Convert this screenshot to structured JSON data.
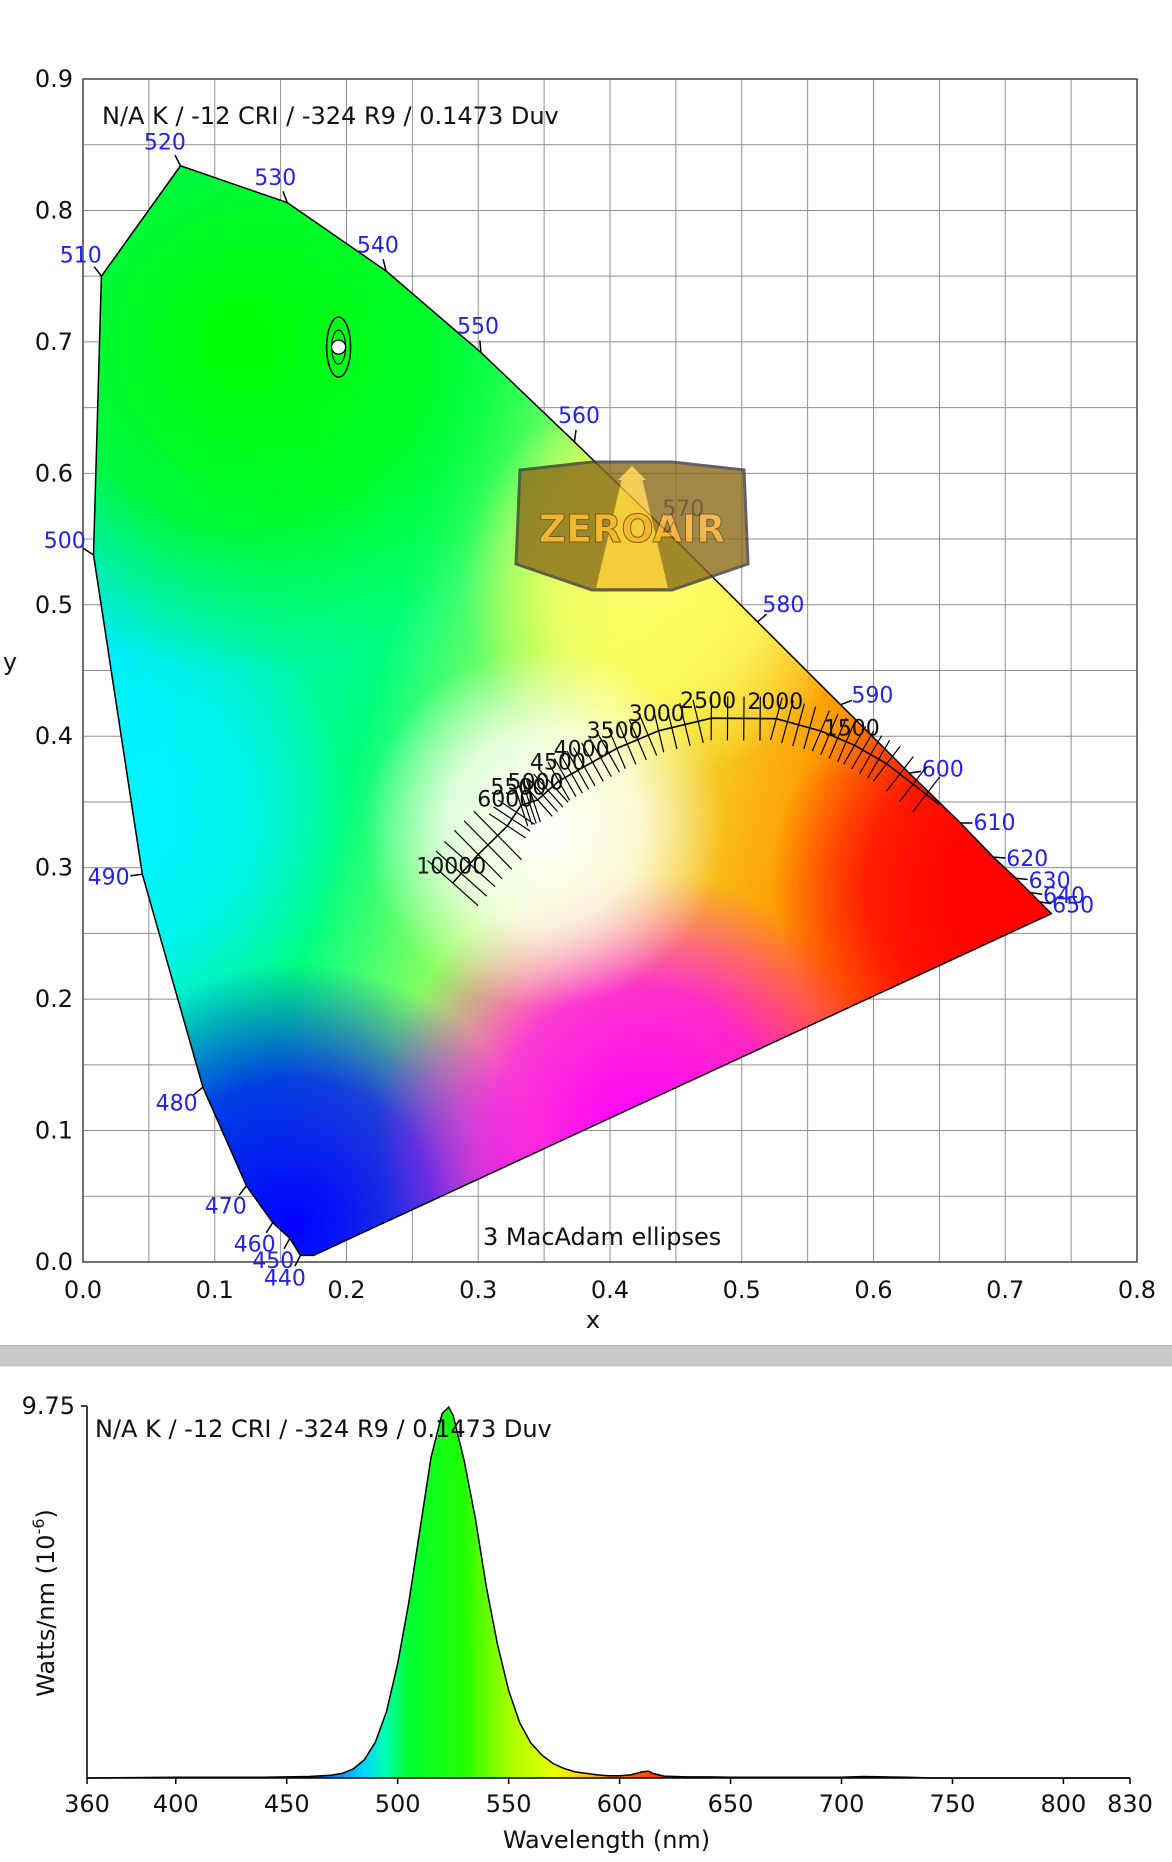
{
  "chart_data": [
    {
      "type": "scatter",
      "title": "N/A K / -12 CRI / -324 R9 / 0.1473 Duv",
      "xlabel": "x",
      "ylabel": "y",
      "xlim": [
        0.0,
        0.8
      ],
      "ylim": [
        0.0,
        0.9
      ],
      "x_ticks": [
        "0.0",
        "0.1",
        "0.2",
        "0.3",
        "0.4",
        "0.5",
        "0.6",
        "0.7",
        "0.8"
      ],
      "y_ticks": [
        "0.0",
        "0.1",
        "0.2",
        "0.3",
        "0.4",
        "0.5",
        "0.6",
        "0.7",
        "0.8",
        "0.9"
      ],
      "grid": true,
      "annotation": "3  MacAdam ellipses",
      "measured_point": {
        "x": 0.194,
        "y": 0.696
      },
      "spectral_locus": [
        {
          "wl": "440",
          "x": 0.165,
          "y": 0.005
        },
        {
          "wl": "450",
          "x": 0.157,
          "y": 0.018
        },
        {
          "wl": "460",
          "x": 0.144,
          "y": 0.03
        },
        {
          "wl": "470",
          "x": 0.124,
          "y": 0.058
        },
        {
          "wl": "480",
          "x": 0.091,
          "y": 0.133
        },
        {
          "wl": "490",
          "x": 0.045,
          "y": 0.295
        },
        {
          "wl": "500",
          "x": 0.008,
          "y": 0.538
        },
        {
          "wl": "510",
          "x": 0.014,
          "y": 0.75
        },
        {
          "wl": "520",
          "x": 0.074,
          "y": 0.834
        },
        {
          "wl": "530",
          "x": 0.155,
          "y": 0.806
        },
        {
          "wl": "540",
          "x": 0.23,
          "y": 0.754
        },
        {
          "wl": "550",
          "x": 0.302,
          "y": 0.692
        },
        {
          "wl": "560",
          "x": 0.373,
          "y": 0.624
        },
        {
          "wl": "570",
          "x": 0.444,
          "y": 0.555
        },
        {
          "wl": "580",
          "x": 0.512,
          "y": 0.487
        },
        {
          "wl": "590",
          "x": 0.575,
          "y": 0.424
        },
        {
          "wl": "600",
          "x": 0.627,
          "y": 0.372
        },
        {
          "wl": "610",
          "x": 0.666,
          "y": 0.334
        },
        {
          "wl": "620",
          "x": 0.691,
          "y": 0.308
        },
        {
          "wl": "630",
          "x": 0.708,
          "y": 0.292
        },
        {
          "wl": "640",
          "x": 0.719,
          "y": 0.281
        },
        {
          "wl": "650",
          "x": 0.726,
          "y": 0.274
        }
      ],
      "cct_labels": [
        {
          "label": "10000",
          "x": 0.281,
          "y": 0.288
        },
        {
          "label": "6000",
          "x": 0.322,
          "y": 0.339
        },
        {
          "label": "5500",
          "x": 0.332,
          "y": 0.348
        },
        {
          "label": "5000",
          "x": 0.345,
          "y": 0.352
        },
        {
          "label": "4500",
          "x": 0.362,
          "y": 0.367
        },
        {
          "label": "4000",
          "x": 0.38,
          "y": 0.377
        },
        {
          "label": "3500",
          "x": 0.405,
          "y": 0.391
        },
        {
          "label": "3000",
          "x": 0.437,
          "y": 0.404
        },
        {
          "label": "2500",
          "x": 0.476,
          "y": 0.414
        },
        {
          "label": "2000",
          "x": 0.527,
          "y": 0.413
        },
        {
          "label": "1500",
          "x": 0.585,
          "y": 0.393
        }
      ]
    },
    {
      "type": "area",
      "title": "N/A K / -12 CRI / -324 R9 / 0.1473 Duv",
      "xlabel": "Wavelength (nm)",
      "ylabel": "Watts/nm (10",
      "ylabel_sup": "-6",
      "ylabel_end": ")",
      "xlim": [
        360,
        830
      ],
      "ylim": [
        0,
        9.75
      ],
      "y_tick_label": "9.75",
      "x_ticks": [
        "360",
        "400",
        "450",
        "500",
        "550",
        "600",
        "650",
        "700",
        "750",
        "800",
        "830"
      ],
      "x": [
        360,
        380,
        400,
        420,
        440,
        450,
        460,
        470,
        475,
        480,
        485,
        490,
        495,
        500,
        505,
        510,
        515,
        520,
        523,
        525,
        530,
        535,
        540,
        545,
        550,
        555,
        560,
        565,
        570,
        575,
        580,
        585,
        590,
        595,
        600,
        605,
        610,
        613,
        615,
        620,
        630,
        640,
        650,
        660,
        670,
        680,
        690,
        700,
        710,
        720,
        730,
        740,
        760,
        800,
        830
      ],
      "values": [
        0,
        0.01,
        0.02,
        0.02,
        0.02,
        0.03,
        0.04,
        0.07,
        0.12,
        0.24,
        0.48,
        0.95,
        1.75,
        3.0,
        4.6,
        6.5,
        8.4,
        9.55,
        9.72,
        9.5,
        8.3,
        6.8,
        5.0,
        3.5,
        2.3,
        1.45,
        0.92,
        0.6,
        0.38,
        0.25,
        0.16,
        0.12,
        0.08,
        0.06,
        0.06,
        0.08,
        0.16,
        0.18,
        0.12,
        0.05,
        0.03,
        0.03,
        0.02,
        0.02,
        0.02,
        0.02,
        0.02,
        0.02,
        0.04,
        0.03,
        0.02,
        0.0,
        0.0,
        0.0,
        0.0
      ]
    }
  ]
}
